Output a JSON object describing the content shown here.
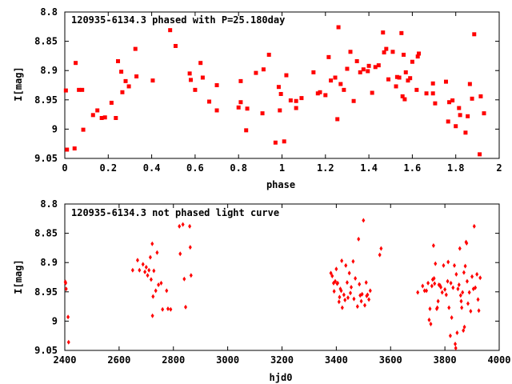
{
  "chart_data": [
    {
      "type": "scatter",
      "title": "120935-6134.3 phased with P=25.180day",
      "xlabel": "phase",
      "ylabel": "I[mag]",
      "xlim": [
        0,
        2
      ],
      "ylim": [
        9.05,
        8.8
      ],
      "y_inverted": true,
      "grid": false,
      "marker_color": "#ff0000",
      "marker": "square",
      "x_ticks": [
        "0",
        "0.2",
        "0.4",
        "0.6",
        "0.8",
        "1",
        "1.2",
        "1.4",
        "1.6",
        "1.8",
        "2"
      ],
      "y_ticks": [
        "8.8",
        "8.85",
        "8.9",
        "8.95",
        "9",
        "9.05"
      ],
      "points": [
        [
          0.005,
          8.934
        ],
        [
          0.01,
          9.035
        ],
        [
          0.045,
          9.033
        ],
        [
          0.05,
          8.887
        ],
        [
          0.065,
          8.933
        ],
        [
          0.08,
          8.933
        ],
        [
          0.085,
          9.001
        ],
        [
          0.13,
          8.976
        ],
        [
          0.15,
          8.968
        ],
        [
          0.17,
          8.981
        ],
        [
          0.185,
          8.98
        ],
        [
          0.215,
          8.955
        ],
        [
          0.235,
          8.981
        ],
        [
          0.245,
          8.884
        ],
        [
          0.26,
          8.902
        ],
        [
          0.265,
          8.937
        ],
        [
          0.28,
          8.918
        ],
        [
          0.295,
          8.927
        ],
        [
          0.325,
          8.863
        ],
        [
          0.33,
          8.91
        ],
        [
          0.405,
          8.917
        ],
        [
          0.485,
          8.831
        ],
        [
          0.51,
          8.858
        ],
        [
          0.575,
          8.905
        ],
        [
          0.58,
          8.916
        ],
        [
          0.6,
          8.933
        ],
        [
          0.625,
          8.887
        ],
        [
          0.635,
          8.912
        ],
        [
          0.665,
          8.953
        ],
        [
          0.7,
          8.925
        ],
        [
          0.7,
          8.968
        ],
        [
          0.8,
          8.963
        ],
        [
          0.81,
          8.918
        ],
        [
          0.81,
          8.954
        ],
        [
          0.835,
          9.002
        ],
        [
          0.84,
          8.965
        ],
        [
          0.88,
          8.904
        ],
        [
          0.91,
          8.973
        ],
        [
          0.915,
          8.898
        ],
        [
          0.94,
          8.873
        ],
        [
          0.97,
          9.023
        ],
        [
          0.985,
          8.928
        ],
        [
          0.99,
          8.968
        ],
        [
          0.995,
          8.94
        ],
        [
          1.01,
          9.021
        ],
        [
          1.02,
          8.908
        ],
        [
          1.04,
          8.951
        ],
        [
          1.065,
          8.964
        ],
        [
          1.065,
          8.952
        ],
        [
          1.09,
          8.947
        ],
        [
          1.145,
          8.903
        ],
        [
          1.165,
          8.939
        ],
        [
          1.175,
          8.937
        ],
        [
          1.2,
          8.942
        ],
        [
          1.215,
          8.877
        ],
        [
          1.225,
          8.917
        ],
        [
          1.245,
          8.912
        ],
        [
          1.255,
          8.983
        ],
        [
          1.26,
          8.826
        ],
        [
          1.27,
          8.923
        ],
        [
          1.285,
          8.933
        ],
        [
          1.3,
          8.897
        ],
        [
          1.315,
          8.868
        ],
        [
          1.33,
          8.952
        ],
        [
          1.345,
          8.884
        ],
        [
          1.36,
          8.903
        ],
        [
          1.375,
          8.898
        ],
        [
          1.395,
          8.901
        ],
        [
          1.4,
          8.892
        ],
        [
          1.415,
          8.938
        ],
        [
          1.43,
          8.894
        ],
        [
          1.445,
          8.891
        ],
        [
          1.465,
          8.835
        ],
        [
          1.47,
          8.869
        ],
        [
          1.48,
          8.863
        ],
        [
          1.49,
          8.915
        ],
        [
          1.51,
          8.868
        ],
        [
          1.525,
          8.927
        ],
        [
          1.53,
          8.911
        ],
        [
          1.54,
          8.912
        ],
        [
          1.55,
          8.836
        ],
        [
          1.555,
          8.944
        ],
        [
          1.56,
          8.873
        ],
        [
          1.565,
          8.949
        ],
        [
          1.57,
          8.903
        ],
        [
          1.58,
          8.917
        ],
        [
          1.59,
          8.913
        ],
        [
          1.6,
          8.885
        ],
        [
          1.62,
          8.933
        ],
        [
          1.625,
          8.876
        ],
        [
          1.63,
          8.871
        ],
        [
          1.665,
          8.939
        ],
        [
          1.695,
          8.922
        ],
        [
          1.695,
          8.939
        ],
        [
          1.705,
          8.956
        ],
        [
          1.755,
          8.919
        ],
        [
          1.765,
          8.987
        ],
        [
          1.77,
          8.954
        ],
        [
          1.785,
          8.951
        ],
        [
          1.8,
          8.995
        ],
        [
          1.815,
          8.964
        ],
        [
          1.82,
          8.976
        ],
        [
          1.845,
          9.006
        ],
        [
          1.855,
          8.978
        ],
        [
          1.865,
          8.923
        ],
        [
          1.875,
          8.948
        ],
        [
          1.885,
          8.838
        ],
        [
          1.91,
          9.043
        ],
        [
          1.915,
          8.944
        ],
        [
          1.93,
          8.973
        ]
      ]
    },
    {
      "type": "scatter",
      "title": "120935-6134.3 not phased light curve",
      "xlabel": "hjd0",
      "ylabel": "I[mag]",
      "xlim": [
        2400,
        4000
      ],
      "ylim": [
        9.05,
        8.8
      ],
      "y_inverted": true,
      "grid": false,
      "marker_color": "#ff0000",
      "marker": "diamond",
      "x_ticks": [
        "2400",
        "2600",
        "2800",
        "3000",
        "3200",
        "3400",
        "3600",
        "3800",
        "4000"
      ],
      "y_ticks": [
        "8.8",
        "8.85",
        "8.9",
        "8.95",
        "9",
        "9.05"
      ],
      "points": [
        [
          2403,
          8.935
        ],
        [
          2405,
          8.945
        ],
        [
          2412,
          8.993
        ],
        [
          2414,
          9.036
        ],
        [
          2402,
          8.933
        ],
        [
          2650,
          8.913
        ],
        [
          2668,
          8.896
        ],
        [
          2675,
          8.913
        ],
        [
          2688,
          8.903
        ],
        [
          2695,
          8.916
        ],
        [
          2700,
          8.908
        ],
        [
          2705,
          8.922
        ],
        [
          2710,
          8.913
        ],
        [
          2715,
          8.891
        ],
        [
          2718,
          8.929
        ],
        [
          2722,
          8.868
        ],
        [
          2725,
          8.958
        ],
        [
          2728,
          8.914
        ],
        [
          2735,
          8.948
        ],
        [
          2740,
          8.883
        ],
        [
          2745,
          8.938
        ],
        [
          2755,
          8.935
        ],
        [
          2760,
          8.98
        ],
        [
          2775,
          8.948
        ],
        [
          2780,
          8.979
        ],
        [
          2790,
          8.98
        ],
        [
          2822,
          8.838
        ],
        [
          2825,
          8.885
        ],
        [
          2835,
          8.835
        ],
        [
          2840,
          8.928
        ],
        [
          2845,
          8.976
        ],
        [
          2860,
          8.838
        ],
        [
          2862,
          8.874
        ],
        [
          2865,
          8.922
        ],
        [
          2723,
          8.991
        ],
        [
          3380,
          8.918
        ],
        [
          3385,
          8.923
        ],
        [
          3390,
          8.935
        ],
        [
          3392,
          8.949
        ],
        [
          3396,
          8.932
        ],
        [
          3400,
          8.911
        ],
        [
          3403,
          8.936
        ],
        [
          3405,
          8.935
        ],
        [
          3410,
          8.967
        ],
        [
          3412,
          8.959
        ],
        [
          3415,
          8.945
        ],
        [
          3418,
          8.948
        ],
        [
          3420,
          8.897
        ],
        [
          3422,
          8.977
        ],
        [
          3428,
          8.955
        ],
        [
          3432,
          8.964
        ],
        [
          3435,
          8.905
        ],
        [
          3440,
          8.934
        ],
        [
          3443,
          8.96
        ],
        [
          3448,
          8.918
        ],
        [
          3452,
          8.952
        ],
        [
          3455,
          8.942
        ],
        [
          3462,
          8.898
        ],
        [
          3465,
          8.962
        ],
        [
          3470,
          8.927
        ],
        [
          3478,
          8.975
        ],
        [
          3482,
          8.86
        ],
        [
          3485,
          8.937
        ],
        [
          3488,
          8.956
        ],
        [
          3492,
          8.966
        ],
        [
          3495,
          8.954
        ],
        [
          3500,
          8.828
        ],
        [
          3505,
          8.973
        ],
        [
          3510,
          8.934
        ],
        [
          3512,
          8.957
        ],
        [
          3515,
          8.955
        ],
        [
          3520,
          8.963
        ],
        [
          3525,
          8.948
        ],
        [
          3560,
          8.887
        ],
        [
          3565,
          8.876
        ],
        [
          3700,
          8.951
        ],
        [
          3718,
          8.94
        ],
        [
          3725,
          8.948
        ],
        [
          3732,
          8.948
        ],
        [
          3738,
          8.935
        ],
        [
          3742,
          8.998
        ],
        [
          3745,
          8.979
        ],
        [
          3748,
          9.005
        ],
        [
          3752,
          8.94
        ],
        [
          3755,
          8.929
        ],
        [
          3758,
          8.871
        ],
        [
          3760,
          8.927
        ],
        [
          3762,
          8.936
        ],
        [
          3765,
          8.902
        ],
        [
          3770,
          8.979
        ],
        [
          3772,
          8.977
        ],
        [
          3775,
          8.966
        ],
        [
          3778,
          8.938
        ],
        [
          3782,
          8.939
        ],
        [
          3785,
          8.942
        ],
        [
          3790,
          8.951
        ],
        [
          3795,
          8.905
        ],
        [
          3800,
          8.946
        ],
        [
          3805,
          8.955
        ],
        [
          3810,
          8.932
        ],
        [
          3812,
          8.899
        ],
        [
          3815,
          8.977
        ],
        [
          3820,
          9.025
        ],
        [
          3822,
          8.935
        ],
        [
          3825,
          8.994
        ],
        [
          3830,
          8.943
        ],
        [
          3835,
          8.905
        ],
        [
          3838,
          9.039
        ],
        [
          3840,
          9.046
        ],
        [
          3842,
          8.92
        ],
        [
          3845,
          9.02
        ],
        [
          3848,
          8.945
        ],
        [
          3852,
          8.938
        ],
        [
          3855,
          8.876
        ],
        [
          3858,
          8.956
        ],
        [
          3860,
          8.966
        ],
        [
          3862,
          8.977
        ],
        [
          3865,
          8.951
        ],
        [
          3868,
          9.016
        ],
        [
          3870,
          8.917
        ],
        [
          3872,
          9.01
        ],
        [
          3875,
          8.906
        ],
        [
          3878,
          8.865
        ],
        [
          3880,
          8.867
        ],
        [
          3882,
          8.932
        ],
        [
          3885,
          8.97
        ],
        [
          3890,
          8.951
        ],
        [
          3895,
          8.983
        ],
        [
          3900,
          8.924
        ],
        [
          3905,
          8.945
        ],
        [
          3908,
          8.838
        ],
        [
          3912,
          8.943
        ],
        [
          3918,
          8.92
        ],
        [
          3922,
          8.963
        ],
        [
          3925,
          8.982
        ],
        [
          3930,
          8.926
        ]
      ]
    }
  ]
}
